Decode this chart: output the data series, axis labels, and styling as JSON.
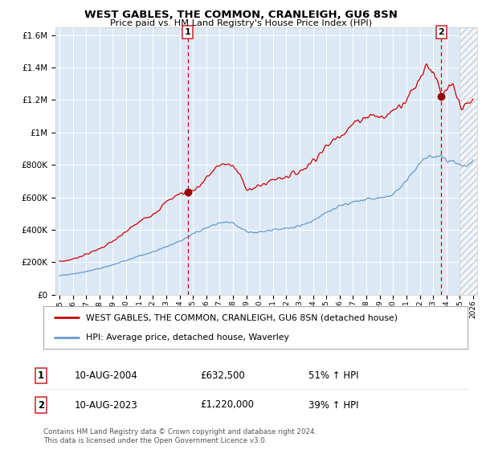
{
  "title": "WEST GABLES, THE COMMON, CRANLEIGH, GU6 8SN",
  "subtitle": "Price paid vs. HM Land Registry's House Price Index (HPI)",
  "legend_line1": "WEST GABLES, THE COMMON, CRANLEIGH, GU6 8SN (detached house)",
  "legend_line2": "HPI: Average price, detached house, Waverley",
  "annotation1_label": "1",
  "annotation1_date": "10-AUG-2004",
  "annotation1_price": "£632,500",
  "annotation1_hpi": "51% ↑ HPI",
  "annotation2_label": "2",
  "annotation2_date": "10-AUG-2023",
  "annotation2_price": "£1,220,000",
  "annotation2_hpi": "39% ↑ HPI",
  "footer": "Contains HM Land Registry data © Crown copyright and database right 2024.\nThis data is licensed under the Open Government Licence v3.0.",
  "line1_color": "#cc0000",
  "line2_color": "#6699cc",
  "bg_fill_color": "#dce9f5",
  "grid_color": "#ffffff",
  "background_color": "#ffffff",
  "ylim": [
    0,
    1650000
  ],
  "yticks": [
    0,
    200000,
    400000,
    600000,
    800000,
    1000000,
    1200000,
    1400000,
    1600000
  ],
  "ytick_labels": [
    "£0",
    "£200K",
    "£400K",
    "£600K",
    "£800K",
    "£1M",
    "£1.2M",
    "£1.4M",
    "£1.6M"
  ],
  "sale1_x": 2004.62,
  "sale1_y": 632500,
  "sale2_x": 2023.62,
  "sale2_y": 1220000,
  "xlim_left": 1994.7,
  "xlim_right": 2026.3,
  "hatch_start": 2025.0,
  "marker_color": "#990000",
  "dashed_line_color": "#cc0000",
  "red_knots_x": [
    1995.0,
    1995.5,
    1996.0,
    1996.5,
    1997.0,
    1997.5,
    1998.0,
    1998.5,
    1999.0,
    1999.5,
    2000.0,
    2000.5,
    2001.0,
    2001.5,
    2002.0,
    2002.5,
    2003.0,
    2003.5,
    2004.0,
    2004.62,
    2005.0,
    2005.5,
    2006.0,
    2006.5,
    2007.0,
    2007.5,
    2008.0,
    2008.5,
    2009.0,
    2009.5,
    2010.0,
    2010.5,
    2011.0,
    2011.5,
    2012.0,
    2012.5,
    2013.0,
    2013.5,
    2014.0,
    2014.5,
    2015.0,
    2015.5,
    2016.0,
    2016.5,
    2017.0,
    2017.5,
    2018.0,
    2018.5,
    2019.0,
    2019.5,
    2020.0,
    2020.5,
    2021.0,
    2021.5,
    2022.0,
    2022.5,
    2023.0,
    2023.62,
    2024.0,
    2024.5,
    2025.0,
    2025.5,
    2026.0
  ],
  "red_knots_y": [
    205000,
    210000,
    220000,
    235000,
    250000,
    265000,
    285000,
    305000,
    330000,
    355000,
    390000,
    420000,
    450000,
    475000,
    500000,
    530000,
    570000,
    600000,
    622000,
    632500,
    645000,
    670000,
    720000,
    760000,
    800000,
    810000,
    790000,
    740000,
    660000,
    650000,
    670000,
    690000,
    710000,
    720000,
    730000,
    745000,
    760000,
    790000,
    830000,
    870000,
    910000,
    950000,
    990000,
    1010000,
    1050000,
    1080000,
    1100000,
    1110000,
    1090000,
    1100000,
    1140000,
    1170000,
    1210000,
    1260000,
    1340000,
    1420000,
    1380000,
    1220000,
    1260000,
    1280000,
    1170000,
    1160000,
    1200000
  ],
  "blue_knots_x": [
    1995.0,
    1995.5,
    1996.0,
    1996.5,
    1997.0,
    1997.5,
    1998.0,
    1998.5,
    1999.0,
    1999.5,
    2000.0,
    2000.5,
    2001.0,
    2001.5,
    2002.0,
    2002.5,
    2003.0,
    2003.5,
    2004.0,
    2004.5,
    2005.0,
    2005.5,
    2006.0,
    2006.5,
    2007.0,
    2007.5,
    2008.0,
    2008.5,
    2009.0,
    2009.5,
    2010.0,
    2010.5,
    2011.0,
    2011.5,
    2012.0,
    2012.5,
    2013.0,
    2013.5,
    2014.0,
    2014.5,
    2015.0,
    2015.5,
    2016.0,
    2016.5,
    2017.0,
    2017.5,
    2018.0,
    2018.5,
    2019.0,
    2019.5,
    2020.0,
    2020.5,
    2021.0,
    2021.5,
    2022.0,
    2022.5,
    2023.0,
    2023.5,
    2024.0,
    2024.5,
    2025.0,
    2025.5,
    2026.0
  ],
  "blue_knots_y": [
    118000,
    122000,
    128000,
    135000,
    143000,
    152000,
    162000,
    173000,
    185000,
    198000,
    213000,
    227000,
    240000,
    252000,
    265000,
    280000,
    296000,
    313000,
    330000,
    350000,
    375000,
    395000,
    415000,
    430000,
    445000,
    450000,
    440000,
    415000,
    390000,
    380000,
    385000,
    390000,
    398000,
    405000,
    408000,
    415000,
    425000,
    440000,
    460000,
    480000,
    505000,
    525000,
    545000,
    560000,
    575000,
    585000,
    590000,
    590000,
    595000,
    605000,
    625000,
    660000,
    710000,
    760000,
    810000,
    850000,
    860000,
    845000,
    830000,
    820000,
    800000,
    790000,
    830000
  ]
}
